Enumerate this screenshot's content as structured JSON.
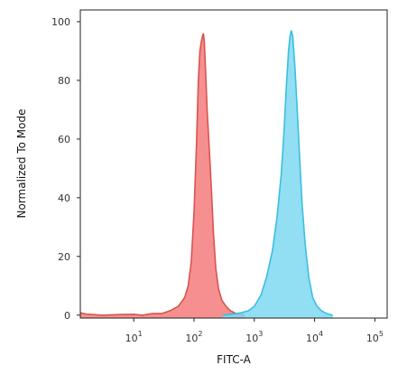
{
  "chart_data": {
    "type": "area",
    "xlabel": "FITC-A",
    "ylabel": "Normalized To Mode",
    "x_scale": "log",
    "xlim": [
      1.3,
      160000
    ],
    "ylim": [
      -1,
      104
    ],
    "grid": false,
    "x_ticks": [
      {
        "base": "10",
        "exp": "1",
        "value": 10
      },
      {
        "base": "10",
        "exp": "2",
        "value": 100
      },
      {
        "base": "10",
        "exp": "3",
        "value": 1000
      },
      {
        "base": "10",
        "exp": "4",
        "value": 10000
      },
      {
        "base": "10",
        "exp": "5",
        "value": 100000
      }
    ],
    "y_ticks": [
      "0",
      "20",
      "40",
      "60",
      "80",
      "100"
    ],
    "series": [
      {
        "color": "#f47c7c",
        "line_color": "#d9534f",
        "points": [
          [
            1.3,
            0.8
          ],
          [
            1.6,
            0.4
          ],
          [
            3,
            0
          ],
          [
            6,
            0.2
          ],
          [
            10,
            0.3
          ],
          [
            14,
            0
          ],
          [
            20,
            0.5
          ],
          [
            30,
            0.6
          ],
          [
            40,
            1.5
          ],
          [
            55,
            3
          ],
          [
            70,
            6
          ],
          [
            80,
            10
          ],
          [
            90,
            18
          ],
          [
            100,
            35
          ],
          [
            110,
            58
          ],
          [
            118,
            80
          ],
          [
            125,
            90
          ],
          [
            132,
            93
          ],
          [
            138,
            95
          ],
          [
            143,
            96
          ],
          [
            148,
            93
          ],
          [
            155,
            84
          ],
          [
            165,
            70
          ],
          [
            180,
            56
          ],
          [
            195,
            42
          ],
          [
            210,
            28
          ],
          [
            230,
            16
          ],
          [
            255,
            9
          ],
          [
            290,
            5
          ],
          [
            340,
            3
          ],
          [
            400,
            1.5
          ],
          [
            480,
            0.7
          ],
          [
            600,
            0.3
          ],
          [
            700,
            0
          ]
        ]
      },
      {
        "color": "#7fd8f0",
        "line_color": "#3bbfe0",
        "points": [
          [
            300,
            0
          ],
          [
            400,
            0.3
          ],
          [
            600,
            0.8
          ],
          [
            800,
            1.5
          ],
          [
            1000,
            3
          ],
          [
            1300,
            7
          ],
          [
            1600,
            13
          ],
          [
            2000,
            22
          ],
          [
            2400,
            34
          ],
          [
            2800,
            48
          ],
          [
            3100,
            62
          ],
          [
            3400,
            78
          ],
          [
            3700,
            90
          ],
          [
            3900,
            95
          ],
          [
            4100,
            97
          ],
          [
            4350,
            95
          ],
          [
            4700,
            85
          ],
          [
            5100,
            72
          ],
          [
            5600,
            55
          ],
          [
            6200,
            38
          ],
          [
            7000,
            24
          ],
          [
            8000,
            13
          ],
          [
            9300,
            6
          ],
          [
            11000,
            3
          ],
          [
            13000,
            1.5
          ],
          [
            16000,
            0.5
          ],
          [
            20000,
            0
          ]
        ]
      }
    ]
  }
}
